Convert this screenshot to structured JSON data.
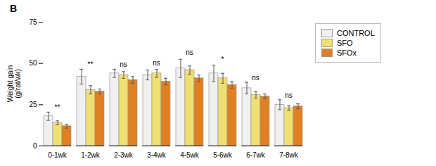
{
  "chart_data": {
    "type": "bar",
    "title": "B",
    "categories": [
      "0-1wk",
      "1-2wk",
      "2-3wk",
      "3-4wk",
      "4-5wk",
      "5-6wk",
      "6-7wk",
      "7-8wk"
    ],
    "series": [
      {
        "name": "CONTROL",
        "color": "#f0f0f0",
        "values": [
          18,
          42,
          44,
          43,
          47,
          44,
          35,
          25
        ],
        "errors": [
          2.5,
          4.5,
          2.5,
          3.0,
          5.5,
          5.0,
          3.5,
          3.0
        ]
      },
      {
        "name": "SFO",
        "color": "#f0e070",
        "values": [
          14,
          34,
          43,
          44,
          46,
          41,
          31,
          23
        ],
        "errors": [
          1.2,
          2.5,
          2.0,
          2.5,
          2.5,
          3.0,
          2.0,
          1.5
        ]
      },
      {
        "name": "SFOx",
        "color": "#e08020",
        "values": [
          12,
          33,
          40,
          39,
          41,
          37,
          30,
          24
        ],
        "errors": [
          1.2,
          1.5,
          2.0,
          2.0,
          2.0,
          2.0,
          1.5,
          1.5
        ]
      }
    ],
    "annotations": [
      {
        "text": "**",
        "x": "0-1wk",
        "y": 22
      },
      {
        "text": "**",
        "x": "1-2wk",
        "y": 48
      },
      {
        "text": "ns",
        "x": "2-3wk",
        "y": 48
      },
      {
        "text": "ns",
        "x": "3-4wk",
        "y": 49
      },
      {
        "text": "ns",
        "x": "4-5wk",
        "y": 55
      },
      {
        "text": "*",
        "x": "5-6wk",
        "y": 51
      },
      {
        "text": "ns",
        "x": "6-7wk",
        "y": 40
      },
      {
        "text": "ns",
        "x": "7-8wk",
        "y": 29
      }
    ],
    "ylabel": "Weight gain\n(g/rat/wk)",
    "ylim": [
      0,
      75
    ],
    "yticks": [
      0,
      25,
      50,
      75
    ],
    "grid": false,
    "legend": "upper right"
  }
}
